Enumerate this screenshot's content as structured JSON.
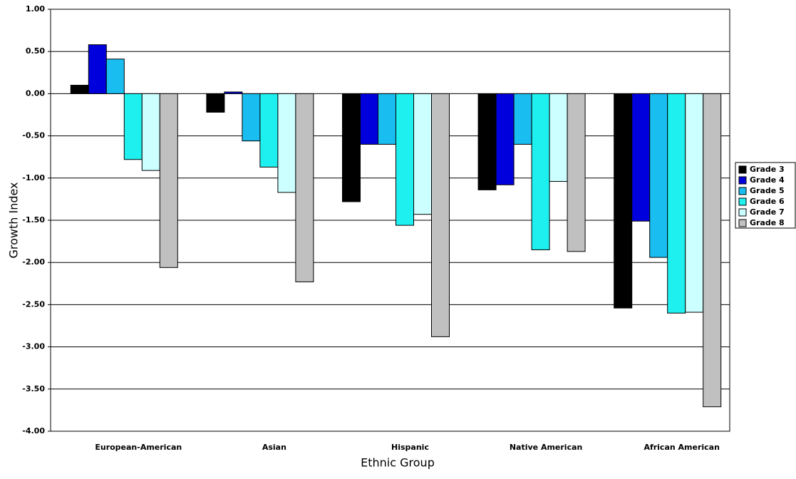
{
  "chart_data": {
    "type": "bar",
    "xlabel": "Ethnic Group",
    "ylabel": "Growth Index",
    "categories": [
      "European-American",
      "Asian",
      "Hispanic",
      "Native American",
      "African American"
    ],
    "series": [
      {
        "name": "Grade 3",
        "color": "#000000",
        "values": [
          0.1,
          -0.22,
          -1.28,
          -1.14,
          -2.54
        ]
      },
      {
        "name": "Grade 4",
        "color": "#0000dd",
        "values": [
          0.58,
          0.02,
          -0.6,
          -1.08,
          -1.51
        ]
      },
      {
        "name": "Grade 5",
        "color": "#19bdf0",
        "values": [
          0.41,
          -0.56,
          -0.6,
          -0.6,
          -1.94
        ]
      },
      {
        "name": "Grade 6",
        "color": "#1ef0f0",
        "values": [
          -0.78,
          -0.87,
          -1.56,
          -1.85,
          -2.6
        ]
      },
      {
        "name": "Grade 7",
        "color": "#ccffff",
        "values": [
          -0.91,
          -1.17,
          -1.43,
          -1.04,
          -2.59
        ]
      },
      {
        "name": "Grade 8",
        "color": "#c0c0c0",
        "values": [
          -2.06,
          -2.23,
          -2.88,
          -1.87,
          -3.71
        ]
      }
    ],
    "ylim": [
      -4,
      1
    ],
    "yticks": [
      {
        "value": -4,
        "label": "-4.00"
      },
      {
        "value": -3.5,
        "label": "-3.50"
      },
      {
        "value": -3,
        "label": "-3.00"
      },
      {
        "value": -2.5,
        "label": "-2.50"
      },
      {
        "value": -2,
        "label": "-2.00"
      },
      {
        "value": -1.5,
        "label": "-1.50"
      },
      {
        "value": -1,
        "label": "-1.00"
      },
      {
        "value": -0.5,
        "label": "-0.50"
      },
      {
        "value": 0,
        "label": "0.00"
      },
      {
        "value": 0.5,
        "label": "0.50"
      },
      {
        "value": 1,
        "label": "1.00"
      }
    ],
    "grid": true,
    "legend": "right"
  }
}
